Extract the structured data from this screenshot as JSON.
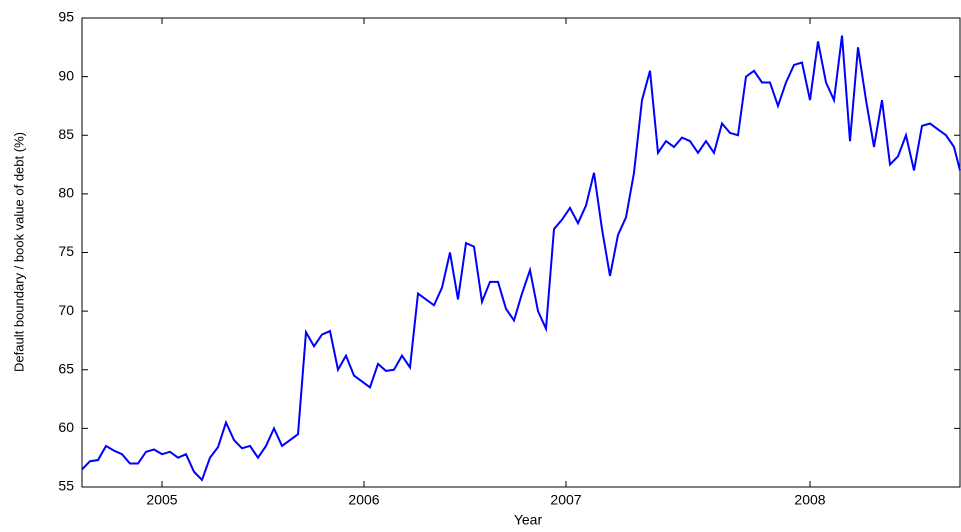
{
  "chart_data": {
    "type": "line",
    "x_label": "Year",
    "y_label": "Default boundary / book value of debt (%)",
    "x": [
      0,
      2,
      4,
      6,
      8,
      10,
      12,
      14,
      16,
      18,
      20,
      22,
      24,
      26,
      28,
      30,
      32,
      34,
      36,
      38,
      40,
      42,
      44,
      46,
      48,
      50,
      52,
      54,
      56,
      58,
      60,
      62,
      64,
      66,
      68,
      70,
      72,
      74,
      76,
      78,
      80,
      82,
      84,
      86,
      88,
      90,
      92,
      94,
      96,
      98,
      100,
      102,
      104,
      106,
      108,
      110,
      112,
      114,
      116,
      118,
      120,
      122,
      124,
      126,
      128,
      130,
      132,
      134,
      136,
      138,
      140,
      142,
      144,
      146,
      148,
      150,
      152,
      154,
      156,
      158,
      160,
      162,
      164,
      166,
      168,
      170,
      172,
      174,
      176,
      178,
      180,
      182,
      184,
      186,
      188,
      190,
      192,
      194,
      196,
      198,
      200,
      202,
      204,
      206,
      208,
      210,
      212,
      214,
      216,
      218,
      219.5
    ],
    "series": [
      {
        "color": "#0000ff",
        "values": [
          56.5,
          57.2,
          57.3,
          58.5,
          58.1,
          57.8,
          57.0,
          57.0,
          58.0,
          58.2,
          57.8,
          58.0,
          57.5,
          57.8,
          56.3,
          55.6,
          57.5,
          58.4,
          60.5,
          59.0,
          58.3,
          58.5,
          57.5,
          58.5,
          60.0,
          58.5,
          59.0,
          59.5,
          68.2,
          67.0,
          68.0,
          68.3,
          65.0,
          66.2,
          64.5,
          64.0,
          63.5,
          65.5,
          64.9,
          65.0,
          66.2,
          65.2,
          71.5,
          71.0,
          70.5,
          72.0,
          75.0,
          71.0,
          75.8,
          75.5,
          70.8,
          72.5,
          72.5,
          70.2,
          69.2,
          71.5,
          73.5,
          70.0,
          68.5,
          77.0,
          77.8,
          78.8,
          77.5,
          79.0,
          81.8,
          77.0,
          73.0,
          76.5,
          78.0,
          81.8,
          88.0,
          90.5,
          83.5,
          84.5,
          84.0,
          84.8,
          84.5,
          83.5,
          84.5,
          83.5,
          86.0,
          85.2,
          85.0,
          90.0,
          90.5,
          89.5,
          89.5,
          87.5,
          89.5,
          91.0,
          91.2,
          88.0,
          93.0,
          89.5,
          88.0,
          93.5,
          84.5,
          92.5,
          88.0,
          84.0,
          88.0,
          82.5,
          83.2,
          85.0,
          82.0,
          85.8,
          86.0,
          85.5,
          85.0,
          84.0,
          82.0
        ]
      }
    ],
    "xlim": [
      0,
      219.5
    ],
    "xticks": [
      {
        "value": 20,
        "label": "2005"
      },
      {
        "value": 70.5,
        "label": "2006"
      },
      {
        "value": 121,
        "label": "2007"
      },
      {
        "value": 182,
        "label": "2008"
      }
    ],
    "ylim": [
      55,
      95
    ],
    "yticks": [
      55,
      60,
      65,
      70,
      75,
      80,
      85,
      90,
      95
    ],
    "grid": false
  }
}
